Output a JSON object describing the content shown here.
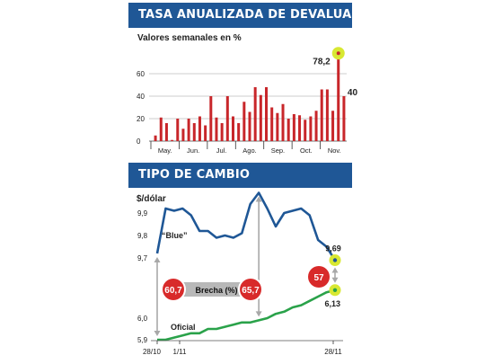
{
  "colors": {
    "header_bg": "#1f5796",
    "bar": "#c8262a",
    "blue_line": "#1f5796",
    "official_line": "#2aa24a",
    "highlight": "#d8e832",
    "bubble_red": "#d82a2a",
    "brecha_pill": "#b8b8b8"
  },
  "panel1": {
    "header": "TASA ANUALIZADA DE DEVALUACIÓN",
    "subtitle": "Valores semanales en %"
  },
  "panel2": {
    "header": "TIPO DE CAMBIO",
    "ylabel": "$/dólar",
    "brecha_label": "Brecha (%)"
  },
  "chart_data": [
    {
      "type": "bar",
      "title": "TASA ANUALIZADA DE DEVALUACIÓN",
      "subtitle": "Valores semanales en %",
      "yticks": [
        "0",
        "20",
        "40",
        "60"
      ],
      "ylim": [
        0,
        80
      ],
      "month_labels": [
        "May.",
        "Jun.",
        "Jul.",
        "Ago.",
        "Sep.",
        "Oct.",
        "Nov."
      ],
      "values": [
        5,
        21,
        16,
        1,
        20,
        11,
        20,
        16,
        22,
        14,
        40,
        21,
        16,
        40,
        22,
        16,
        35,
        26,
        48,
        41,
        48,
        30,
        25,
        33,
        20,
        24,
        23,
        19,
        22,
        27,
        46,
        46,
        27,
        78.2,
        40
      ],
      "annotations": [
        {
          "label": "78,2",
          "value": 78.2
        },
        {
          "label": "40",
          "value": 40
        }
      ],
      "grid": true
    },
    {
      "type": "line",
      "title": "TIPO DE CAMBIO",
      "ylabel": "$/dólar",
      "yticks": [
        "9,9",
        "9,8",
        "9,7",
        "6,0",
        "5,9"
      ],
      "xticks": [
        "28/10",
        "1/11",
        "28/11"
      ],
      "series": [
        {
          "name": "“Blue”",
          "values": [
            9.72,
            9.92,
            9.91,
            9.92,
            9.89,
            9.82,
            9.82,
            9.79,
            9.8,
            9.79,
            9.81,
            9.94,
            9.99,
            9.92,
            9.84,
            9.9,
            9.91,
            9.92,
            9.89,
            9.78,
            9.75,
            9.69
          ],
          "end_label": "9,69"
        },
        {
          "name": "Oficial",
          "values": [
            5.9,
            5.9,
            5.91,
            5.92,
            5.93,
            5.93,
            5.95,
            5.95,
            5.96,
            5.97,
            5.98,
            5.98,
            5.99,
            6.0,
            6.02,
            6.03,
            6.05,
            6.06,
            6.08,
            6.1,
            6.12,
            6.13
          ],
          "end_label": "6,13"
        }
      ],
      "annotations": [
        {
          "label": "60,7",
          "kind": "brecha"
        },
        {
          "label": "65,7",
          "kind": "brecha"
        },
        {
          "label": "57",
          "kind": "brecha"
        }
      ],
      "grid": false
    }
  ]
}
